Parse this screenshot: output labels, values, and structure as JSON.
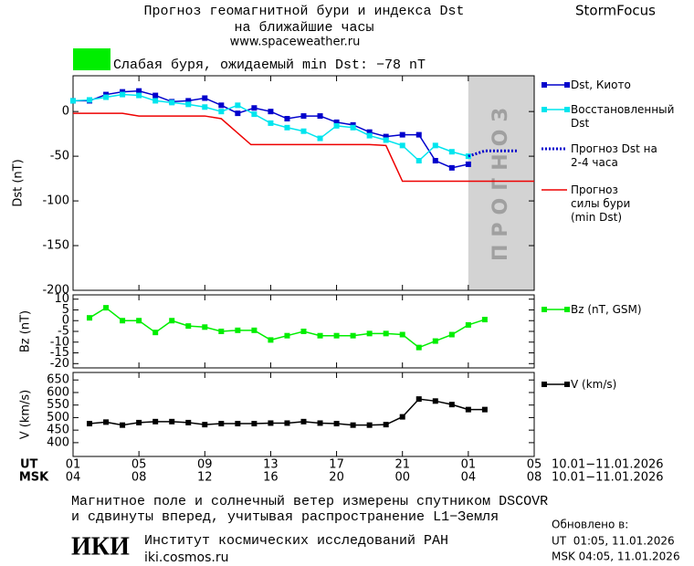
{
  "header": {
    "title": "Прогноз геомагнитной бури и индекса Dst",
    "subtitle": "на ближайшие часы",
    "url": "www.spaceweather.ru",
    "brand": "StormFocus"
  },
  "status": {
    "text": "Слабая буря, ожидаемый min Dst: −78 nT",
    "color": "#00ee00"
  },
  "chart_data": [
    {
      "type": "line",
      "ylabel": "Dst (nT)",
      "xlim": [
        0,
        28
      ],
      "ylim": [
        -200,
        40
      ],
      "yticks": [
        0,
        -50,
        -100,
        -150,
        -200
      ],
      "forecast_region": {
        "x": [
          24,
          28
        ],
        "label": "ПРОГНОЗ",
        "color": "#d3d3d3"
      },
      "series": [
        {
          "name": "Dst, Киото",
          "color": "#0000cc",
          "marker": "square",
          "x": [
            0,
            1,
            2,
            3,
            4,
            5,
            6,
            7,
            8,
            9,
            10,
            11,
            12,
            13,
            14,
            15,
            16,
            17,
            18,
            19,
            20,
            21,
            22,
            23,
            24
          ],
          "values": [
            12,
            12,
            19,
            22,
            23,
            18,
            11,
            12,
            15,
            7,
            -2,
            4,
            0,
            -8,
            -5,
            -5,
            -12,
            -15,
            -23,
            -28,
            -26,
            -26,
            -55,
            -63,
            -59
          ]
        },
        {
          "name": "Восстановленный Dst",
          "color": "#00e5ee",
          "marker": "square",
          "x": [
            0,
            1,
            2,
            3,
            4,
            5,
            6,
            7,
            8,
            9,
            10,
            11,
            12,
            13,
            14,
            15,
            16,
            17,
            18,
            19,
            20,
            21,
            22,
            23,
            24
          ],
          "values": [
            12,
            13,
            16,
            19,
            18,
            12,
            10,
            8,
            5,
            0,
            7,
            -3,
            -13,
            -18,
            -22,
            -30,
            -16,
            -18,
            -27,
            -32,
            -38,
            -55,
            -38,
            -45,
            -50
          ]
        },
        {
          "name": "Прогноз Dst на 2-4 часа",
          "color": "#0000cc",
          "dash": "dotted",
          "x": [
            24,
            25,
            26,
            27
          ],
          "values": [
            -50,
            -44,
            -44,
            -44
          ]
        },
        {
          "name": "Прогноз силы бури (min Dst)",
          "color": "#ee0000",
          "x": [
            0,
            3,
            4,
            8,
            9,
            10.8,
            18,
            19,
            20,
            28
          ],
          "values": [
            -2,
            -2,
            -5,
            -5,
            -8,
            -37,
            -37,
            -38,
            -78,
            -78
          ]
        }
      ]
    },
    {
      "type": "line",
      "ylabel": "Bz (nT)",
      "xlim": [
        0,
        28
      ],
      "ylim": [
        -22,
        12
      ],
      "yticks": [
        10,
        5,
        0,
        -5,
        -10,
        -15,
        -20
      ],
      "series": [
        {
          "name": "Bz (nT, GSM)",
          "color": "#00ee00",
          "marker": "square",
          "x": [
            1,
            2,
            3,
            4,
            5,
            6,
            7,
            8,
            9,
            10,
            11,
            12,
            13,
            14,
            15,
            16,
            17,
            18,
            19,
            20,
            21,
            22,
            23,
            24,
            25
          ],
          "values": [
            1.3,
            6,
            0,
            0,
            -5.5,
            0,
            -2.5,
            -3,
            -5,
            -4.5,
            -4.5,
            -9,
            -7,
            -5,
            -7,
            -7,
            -7,
            -6,
            -6,
            -6.5,
            -12.5,
            -9.5,
            -6.5,
            -2,
            0.5
          ]
        }
      ]
    },
    {
      "type": "line",
      "ylabel": "V (km/s)",
      "xlim": [
        0,
        28
      ],
      "ylim": [
        345,
        680
      ],
      "yticks": [
        650,
        600,
        550,
        500,
        450,
        400
      ],
      "ut_label": "UT",
      "msk_label": "MSK",
      "date_range_ut": "10.01−11.01.2026",
      "date_range_msk": "10.01−11.01.2026",
      "xticks": [
        {
          "value": 0,
          "label": "01"
        },
        {
          "value": 4,
          "label": "05"
        },
        {
          "value": 8,
          "label": "09"
        },
        {
          "value": 12,
          "label": "13"
        },
        {
          "value": 16,
          "label": "17"
        },
        {
          "value": 20,
          "label": "21"
        },
        {
          "value": 24,
          "label": "01"
        },
        {
          "value": 28,
          "label": "05"
        }
      ],
      "xticks_msk": [
        {
          "value": 0,
          "label": "04"
        },
        {
          "value": 4,
          "label": "08"
        },
        {
          "value": 8,
          "label": "12"
        },
        {
          "value": 12,
          "label": "16"
        },
        {
          "value": 16,
          "label": "20"
        },
        {
          "value": 20,
          "label": "00"
        },
        {
          "value": 24,
          "label": "04"
        },
        {
          "value": 28,
          "label": "08"
        }
      ],
      "series": [
        {
          "name": "V (km/s)",
          "color": "#000000",
          "marker": "square",
          "x": [
            1,
            2,
            3,
            4,
            5,
            6,
            7,
            8,
            9,
            10,
            11,
            12,
            13,
            14,
            15,
            16,
            17,
            18,
            19,
            20,
            21,
            22,
            23,
            24,
            25
          ],
          "values": [
            476,
            482,
            470,
            480,
            484,
            484,
            480,
            472,
            476,
            476,
            476,
            478,
            478,
            484,
            478,
            476,
            470,
            470,
            472,
            503,
            574,
            566,
            552,
            532,
            532
          ]
        }
      ]
    }
  ],
  "footer": {
    "note_1": "Магнитное поле и солнечный ветер измерены спутником DSCOVR",
    "note_2": "и сдвинуты вперед, учитывая распространение L1−Земля",
    "updated": "Обновлено в:",
    "updated_ut": "UT  01:05, 11.01.2026",
    "updated_msk": "MSK 04:05, 11.01.2026",
    "logo": "ИКИ",
    "institute": "Институт космических исследований РАН",
    "site": "iki.cosmos.ru"
  }
}
